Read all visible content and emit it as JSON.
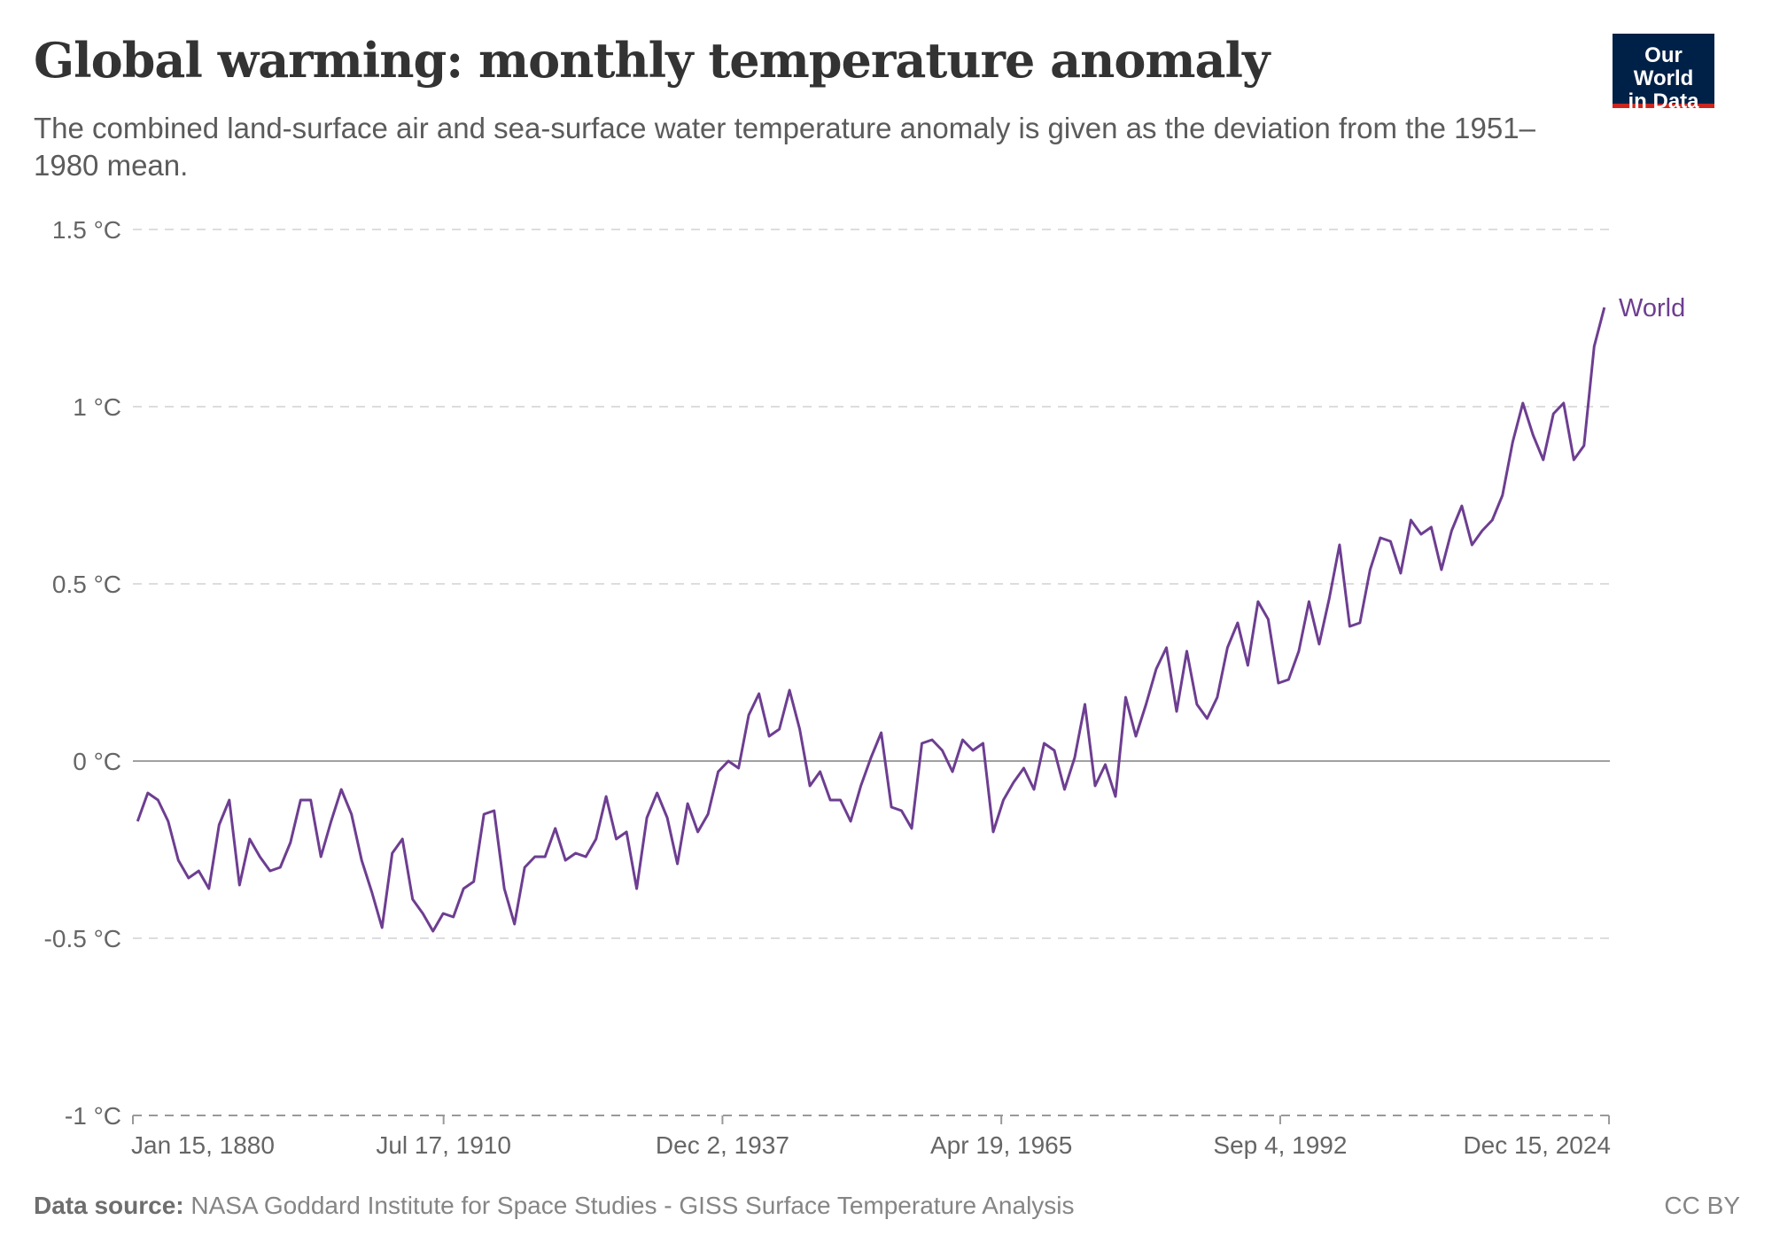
{
  "header": {
    "title": "Global warming: monthly temperature anomaly",
    "subtitle": "The combined land-surface air and sea-surface water temperature anomaly is given as the deviation from the 1951–1980 mean.",
    "logo_text": "Our World in Data"
  },
  "footer": {
    "source_label": "Data source:",
    "source_text": "NASA Goddard Institute for Space Studies - GISS Surface Temperature Analysis",
    "license": "CC BY"
  },
  "chart_data": {
    "type": "line",
    "title": "",
    "xlabel": "",
    "ylabel": "",
    "ylim": [
      -1,
      1.5
    ],
    "xlim": [
      "Jan 15, 1880",
      "Jan 15, 2025"
    ],
    "y_ticks": [
      -1,
      -0.5,
      0,
      0.5,
      1,
      1.5
    ],
    "y_tick_labels": [
      "-1 °C",
      "-0.5 °C",
      "0 °C",
      "0.5 °C",
      "1 °C",
      "1.5 °C"
    ],
    "x_ticks": [
      "1880-01-15",
      "1910-07-17",
      "1937-12-02",
      "1965-04-19",
      "1992-09-04",
      "2024-12-15"
    ],
    "x_tick_labels": [
      "Jan 15, 1880",
      "Jul 17, 1910",
      "Dec 2, 1937",
      "Apr 19, 1965",
      "Sep 4, 1992",
      "Dec 15, 2024"
    ],
    "grid": "horizontal dashed",
    "colors": {
      "World": "#6d3e91",
      "zero_line": "#a0a0a0",
      "grid": "#dddddd"
    },
    "series": [
      {
        "name": "World",
        "label_position": "end-of-line",
        "x_years": [
          1880,
          1881,
          1882,
          1883,
          1884,
          1885,
          1886,
          1887,
          1888,
          1889,
          1890,
          1891,
          1892,
          1893,
          1894,
          1895,
          1896,
          1897,
          1898,
          1899,
          1900,
          1901,
          1902,
          1903,
          1904,
          1905,
          1906,
          1907,
          1908,
          1909,
          1910,
          1911,
          1912,
          1913,
          1914,
          1915,
          1916,
          1917,
          1918,
          1919,
          1920,
          1921,
          1922,
          1923,
          1924,
          1925,
          1926,
          1927,
          1928,
          1929,
          1930,
          1931,
          1932,
          1933,
          1934,
          1935,
          1936,
          1937,
          1938,
          1939,
          1940,
          1941,
          1942,
          1943,
          1944,
          1945,
          1946,
          1947,
          1948,
          1949,
          1950,
          1951,
          1952,
          1953,
          1954,
          1955,
          1956,
          1957,
          1958,
          1959,
          1960,
          1961,
          1962,
          1963,
          1964,
          1965,
          1966,
          1967,
          1968,
          1969,
          1970,
          1971,
          1972,
          1973,
          1974,
          1975,
          1976,
          1977,
          1978,
          1979,
          1980,
          1981,
          1982,
          1983,
          1984,
          1985,
          1986,
          1987,
          1988,
          1989,
          1990,
          1991,
          1992,
          1993,
          1994,
          1995,
          1996,
          1997,
          1998,
          1999,
          2000,
          2001,
          2002,
          2003,
          2004,
          2005,
          2006,
          2007,
          2008,
          2009,
          2010,
          2011,
          2012,
          2013,
          2014,
          2015,
          2016,
          2017,
          2018,
          2019,
          2020,
          2021,
          2022,
          2023,
          2024
        ],
        "values": [
          -0.17,
          -0.09,
          -0.11,
          -0.17,
          -0.28,
          -0.33,
          -0.31,
          -0.36,
          -0.18,
          -0.11,
          -0.35,
          -0.22,
          -0.27,
          -0.31,
          -0.3,
          -0.23,
          -0.11,
          -0.11,
          -0.27,
          -0.17,
          -0.08,
          -0.15,
          -0.28,
          -0.37,
          -0.47,
          -0.26,
          -0.22,
          -0.39,
          -0.43,
          -0.48,
          -0.43,
          -0.44,
          -0.36,
          -0.34,
          -0.15,
          -0.14,
          -0.36,
          -0.46,
          -0.3,
          -0.27,
          -0.27,
          -0.19,
          -0.28,
          -0.26,
          -0.27,
          -0.22,
          -0.1,
          -0.22,
          -0.2,
          -0.36,
          -0.16,
          -0.09,
          -0.16,
          -0.29,
          -0.12,
          -0.2,
          -0.15,
          -0.03,
          0.0,
          -0.02,
          0.13,
          0.19,
          0.07,
          0.09,
          0.2,
          0.09,
          -0.07,
          -0.03,
          -0.11,
          -0.11,
          -0.17,
          -0.07,
          0.01,
          0.08,
          -0.13,
          -0.14,
          -0.19,
          0.05,
          0.06,
          0.03,
          -0.03,
          0.06,
          0.03,
          0.05,
          -0.2,
          -0.11,
          -0.06,
          -0.02,
          -0.08,
          0.05,
          0.03,
          -0.08,
          0.01,
          0.16,
          -0.07,
          -0.01,
          -0.1,
          0.18,
          0.07,
          0.16,
          0.26,
          0.32,
          0.14,
          0.31,
          0.16,
          0.12,
          0.18,
          0.32,
          0.39,
          0.27,
          0.45,
          0.4,
          0.22,
          0.23,
          0.31,
          0.45,
          0.33,
          0.46,
          0.61,
          0.38,
          0.39,
          0.54,
          0.63,
          0.62,
          0.53,
          0.68,
          0.64,
          0.66,
          0.54,
          0.65,
          0.72,
          0.61,
          0.65,
          0.68,
          0.75,
          0.9,
          1.01,
          0.92,
          0.85,
          0.98,
          1.01,
          0.85,
          0.89,
          1.17,
          1.28
        ]
      }
    ]
  }
}
